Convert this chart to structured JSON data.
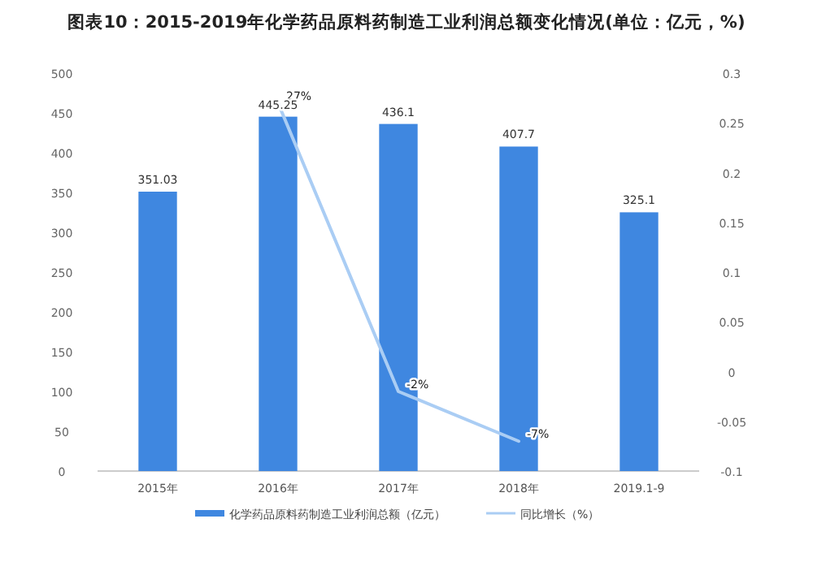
{
  "chart_data": {
    "type": "bar",
    "title": "图表10：2015-2019年化学药品原料药制造工业利润总额变化情况(单位：亿元，%)",
    "categories": [
      "2015年",
      "2016年",
      "2017年",
      "2018年",
      "2019.1-9"
    ],
    "series": [
      {
        "name": "化学药品原料药制造工业利润总额（亿元）",
        "color": "#3f87e0",
        "values": [
          351.03,
          445.25,
          436.1,
          407.7,
          325.1
        ]
      },
      {
        "name": "同比增长（%）",
        "type": "line",
        "axis": "y2",
        "color": "#aacdf4",
        "values": [
          null,
          0.27,
          -0.02,
          -0.07,
          null
        ],
        "value_labels": [
          null,
          "27%",
          "-2%",
          "-7%",
          null
        ]
      }
    ],
    "data_labels": true,
    "ylim": [
      0,
      500
    ],
    "yticks": [
      0,
      50,
      100,
      150,
      200,
      250,
      300,
      350,
      400,
      450,
      500
    ],
    "y2lim": [
      -0.1,
      0.3
    ],
    "y2ticks": [
      {
        "value": -0.1,
        "label": "-0.1"
      },
      {
        "value": -0.05,
        "label": "-0.05"
      },
      0,
      0.05,
      0.1,
      0.15,
      0.2,
      0.25,
      0.3
    ],
    "grid": false,
    "legend": "bottom"
  }
}
